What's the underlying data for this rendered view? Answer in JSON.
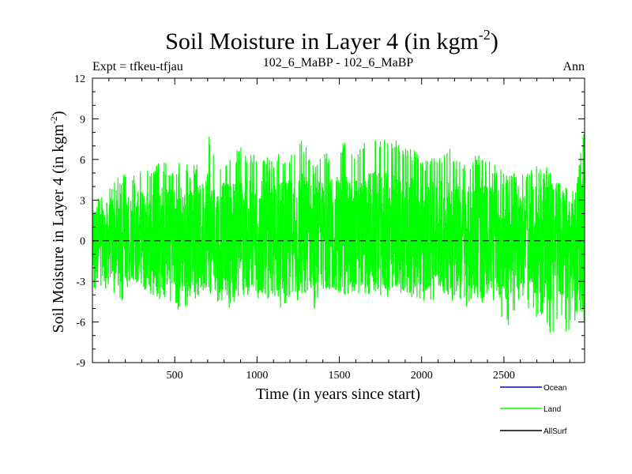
{
  "chart_data": {
    "type": "line",
    "title": "Soil Moisture in Layer 4 (in kgm",
    "title_superscript": "-2",
    "title_suffix": ")",
    "subtitle_left": "Expt = tfkeu-tfjau",
    "subtitle_center": "102_6_MaBP - 102_6_MaBP",
    "subtitle_right": "Ann",
    "xlabel": "Time (in years since start)",
    "ylabel": "Soil Moisture in Layer 4 (in kgm",
    "ylabel_superscript": "-2",
    "ylabel_suffix": ")",
    "xlim": [
      0,
      2990
    ],
    "ylim": [
      -9,
      12
    ],
    "xticks": [
      500,
      1000,
      1500,
      2000,
      2500
    ],
    "yticks": [
      -9,
      -6,
      -3,
      0,
      3,
      6,
      9,
      12
    ],
    "zero_line": "dashed",
    "grid": false,
    "legend_position": "bottom-right",
    "series": [
      {
        "name": "Ocean",
        "color": "#0000ff",
        "values": []
      },
      {
        "name": "Land",
        "color": "#00ff00",
        "x": [
          0,
          60,
          120,
          180,
          240,
          300,
          360,
          420,
          480,
          540,
          600,
          660,
          700,
          720,
          780,
          840,
          900,
          960,
          1020,
          1080,
          1140,
          1200,
          1260,
          1320,
          1350,
          1380,
          1440,
          1500,
          1560,
          1620,
          1680,
          1740,
          1800,
          1860,
          1920,
          1980,
          2040,
          2100,
          2160,
          2220,
          2280,
          2340,
          2400,
          2460,
          2520,
          2580,
          2640,
          2700,
          2760,
          2790,
          2820,
          2880,
          2940,
          2990
        ],
        "upper": [
          4.0,
          3.5,
          4.5,
          5.0,
          4.8,
          5.5,
          5.2,
          6.0,
          5.5,
          6.0,
          5.5,
          6.0,
          9.2,
          6.5,
          6.0,
          6.5,
          7.0,
          6.5,
          6.5,
          6.0,
          6.5,
          6.5,
          8.0,
          6.5,
          5.5,
          6.5,
          6.5,
          7.5,
          7.0,
          7.0,
          8.0,
          7.5,
          7.5,
          7.5,
          7.0,
          6.5,
          6.0,
          6.5,
          7.0,
          6.0,
          5.5,
          6.5,
          6.0,
          5.5,
          5.5,
          5.0,
          5.0,
          5.5,
          5.5,
          5.0,
          4.5,
          5.0,
          4.5,
          8.5
        ],
        "lower": [
          -4.0,
          -3.5,
          -3.8,
          -4.5,
          -3.5,
          -4.0,
          -4.5,
          -4.8,
          -4.5,
          -5.5,
          -4.5,
          -4.0,
          -3.5,
          -4.5,
          -4.5,
          -5.0,
          -4.5,
          -4.0,
          -4.5,
          -4.5,
          -5.0,
          -4.5,
          -4.5,
          -4.5,
          -6.0,
          -4.5,
          -4.0,
          -4.5,
          -4.0,
          -4.0,
          -4.0,
          -4.0,
          -4.5,
          -4.0,
          -4.0,
          -4.5,
          -4.5,
          -4.5,
          -4.5,
          -4.5,
          -5.0,
          -5.0,
          -5.0,
          -5.5,
          -6.5,
          -5.0,
          -5.0,
          -6.0,
          -6.5,
          -7.2,
          -6.0,
          -6.8,
          -6.0,
          -6.0
        ]
      },
      {
        "name": "AllSurf",
        "color": "#000000",
        "values": []
      }
    ]
  }
}
